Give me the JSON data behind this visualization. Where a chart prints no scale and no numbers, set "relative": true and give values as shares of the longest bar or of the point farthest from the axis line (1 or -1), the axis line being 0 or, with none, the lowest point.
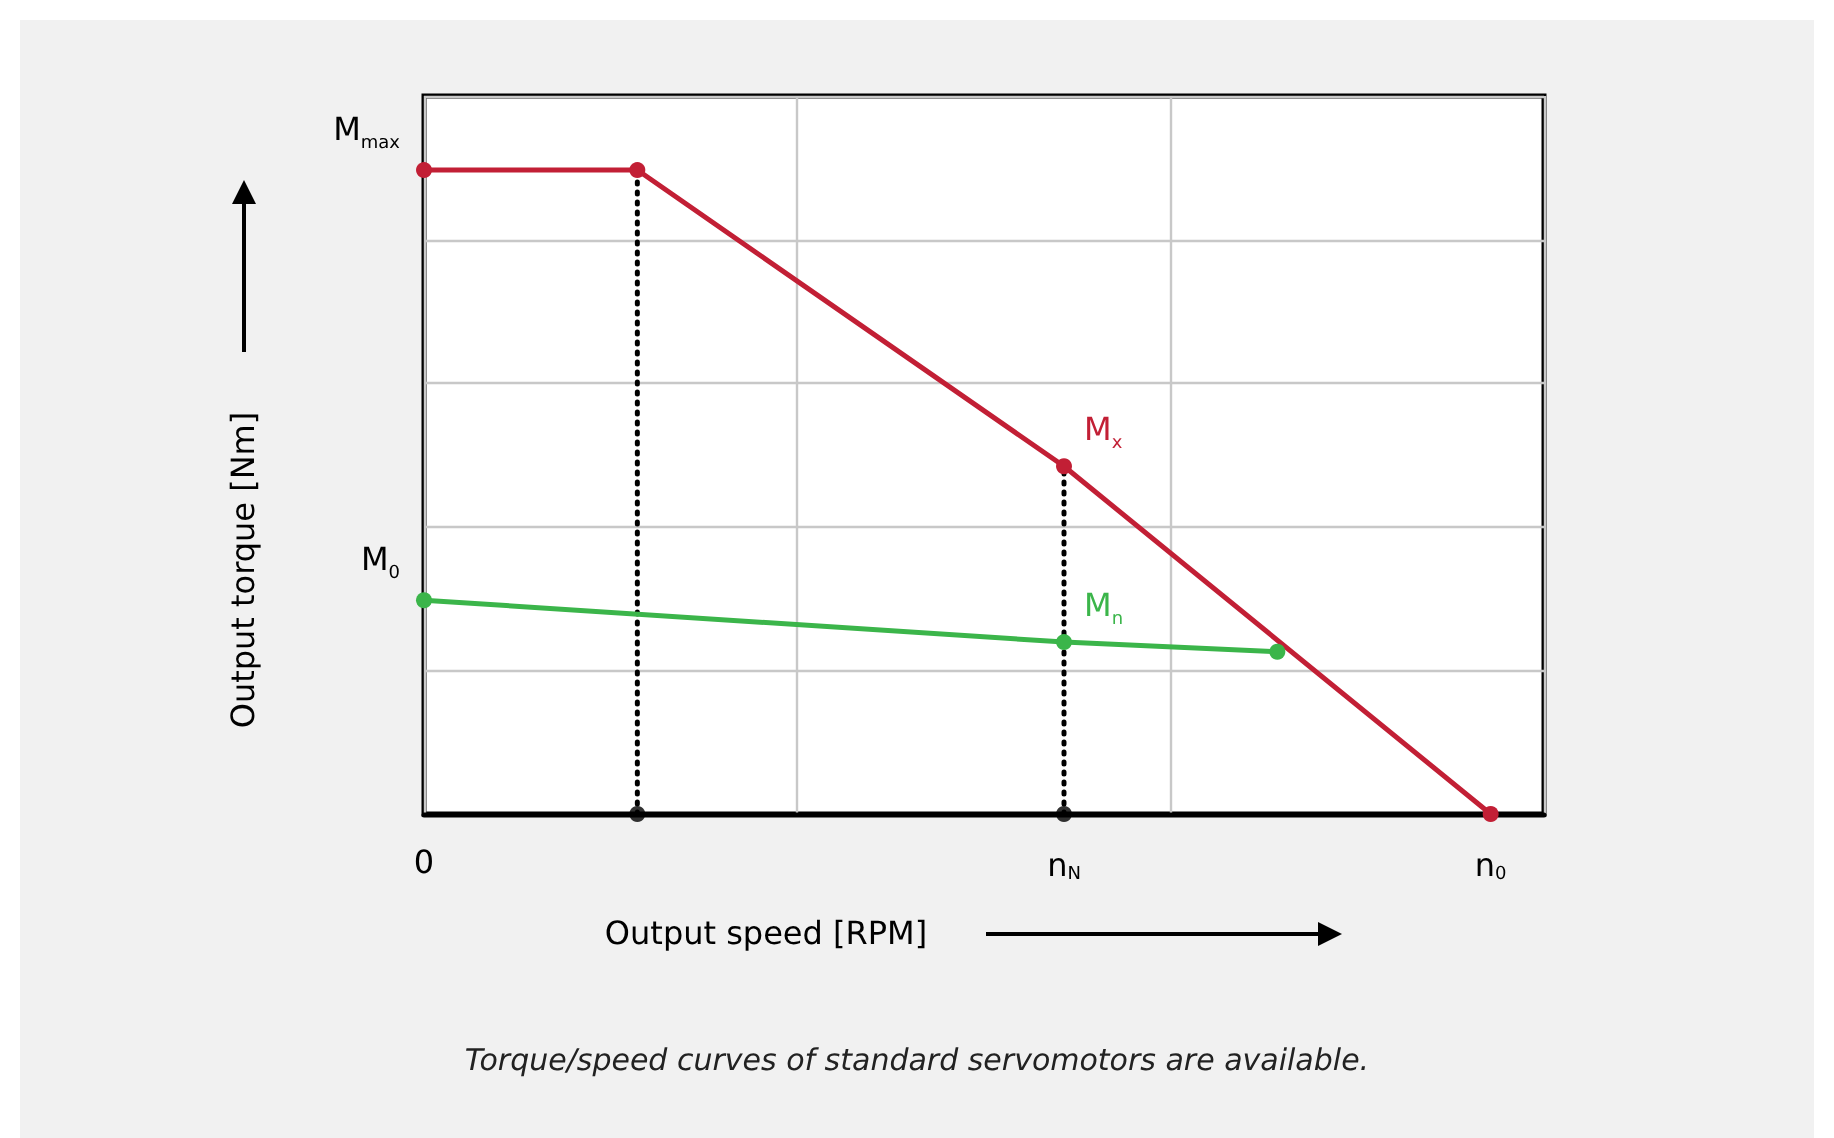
{
  "chart_data": {
    "type": "line",
    "relative": true,
    "xlabel": "Output speed [RPM]",
    "ylabel": "Output torque [Nm]",
    "categories": [
      "0",
      null,
      null,
      null,
      null,
      null,
      null,
      null,
      null,
      null,
      null,
      null,
      "n$_{N}$",
      null,
      null,
      null,
      null,
      null,
      null,
      null,
      "n$_{0}$",
      null
    ],
    "grid": true,
    "marker": "circle",
    "series": [
      {
        "color": "#c21f35",
        "line_style": "solid",
        "values": [
          1,
          null,
          null,
          null,
          1,
          null,
          null,
          null,
          null,
          null,
          null,
          null,
          0.54,
          null,
          null,
          null,
          null,
          null,
          null,
          null,
          0,
          null
        ]
      },
      {
        "color": "#3bb54a",
        "line_style": "solid",
        "values": [
          0.332,
          null,
          null,
          null,
          null,
          null,
          null,
          null,
          null,
          null,
          null,
          null,
          0.267,
          null,
          null,
          null,
          0.252,
          null,
          null,
          null,
          null,
          null
        ]
      },
      {
        "type": "scatter",
        "color": "#000000",
        "values": [
          null,
          null,
          null,
          null,
          0,
          null,
          null,
          null,
          null,
          null,
          null,
          null,
          0,
          null,
          null,
          null,
          null,
          null,
          null,
          null,
          null,
          null
        ]
      }
    ],
    "annotations": [
      {
        "text": "M$_{max}$",
        "x": "0",
        "y": 1
      },
      {
        "text": "M$_{0}$",
        "x": "0",
        "y": 0.332
      },
      {
        "text": "M$_{x}$",
        "x": "n$_{N}$",
        "y": 0.54
      },
      {
        "text": "M$_{n}$",
        "x": "n$_{N}$",
        "y": 0.267
      },
      "Torque/speed curves of standard servomotors are available."
    ]
  }
}
